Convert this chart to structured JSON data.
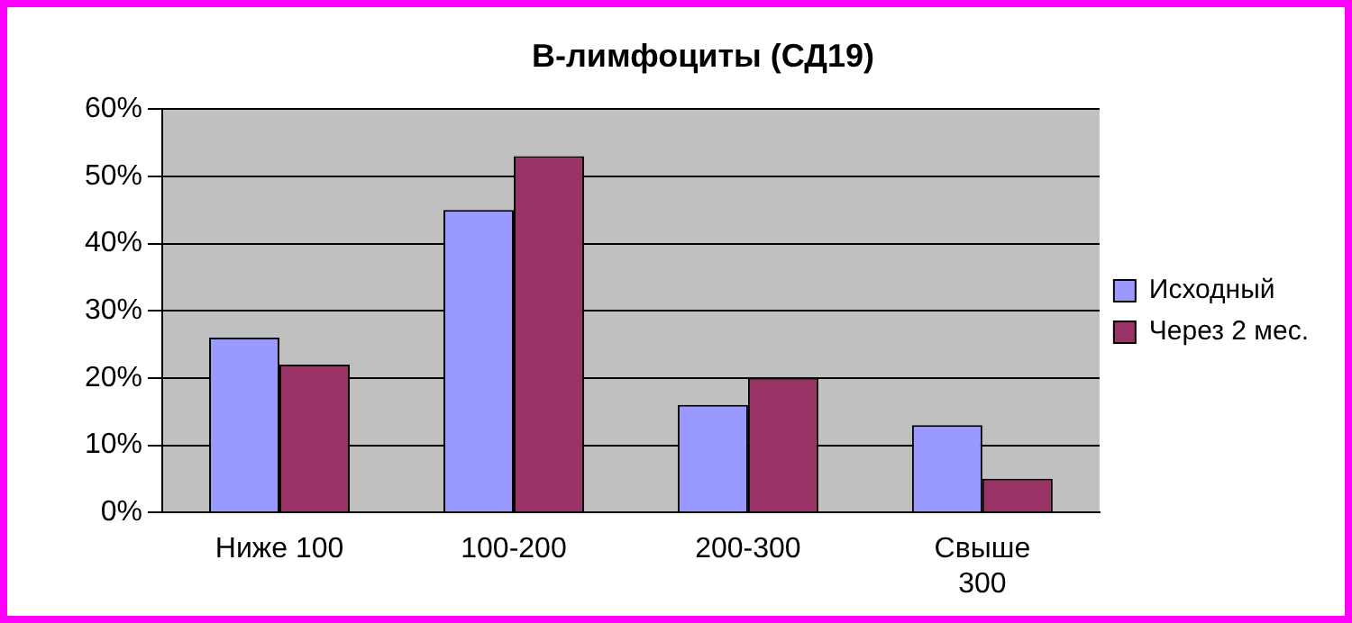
{
  "chart_data": {
    "type": "bar",
    "title": "В-лимфоциты (СД19)",
    "categories": [
      "Ниже 100",
      "100-200",
      "200-300",
      "Свыше 300"
    ],
    "series": [
      {
        "name": "Исходный",
        "color": "#9999ff",
        "values": [
          26,
          45,
          16,
          13
        ]
      },
      {
        "name": "Через 2 мес.",
        "color": "#993366",
        "values": [
          22,
          53,
          20,
          5
        ]
      }
    ],
    "ylim": [
      0,
      60
    ],
    "yticks": [
      {
        "value": 0,
        "label": "0%"
      },
      {
        "value": 10,
        "label": "10%"
      },
      {
        "value": 20,
        "label": "20%"
      },
      {
        "value": 30,
        "label": "30%"
      },
      {
        "value": 40,
        "label": "40%"
      },
      {
        "value": 50,
        "label": "50%"
      },
      {
        "value": 60,
        "label": "60%"
      }
    ],
    "grid": "y",
    "legend": "right"
  }
}
